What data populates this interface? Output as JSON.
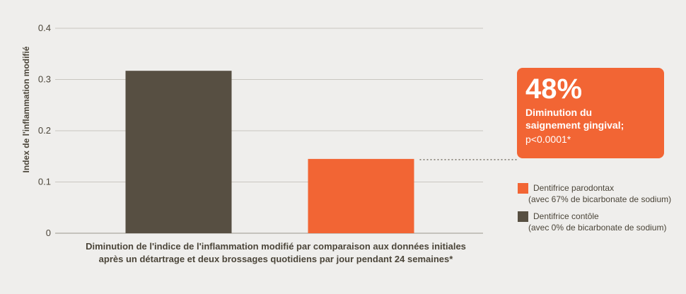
{
  "chart_data": {
    "type": "bar",
    "ylabel": "Index de l'inflammation modifié",
    "xlabel_lines": [
      "Diminution de l'indice de l'inflammation modifié par comparaison aux données initiales",
      "après un détartrage et deux brossages quotidiens par jour pendant 24 semaines*"
    ],
    "ylim": [
      0,
      0.4
    ],
    "yticks": [
      0,
      0.1,
      0.2,
      0.3,
      0.4
    ],
    "ytick_labels": [
      "0",
      "0.1",
      "0.2",
      "0.3",
      "0.4"
    ],
    "grid": true,
    "legend_position": "right",
    "bars": [
      {
        "series": "Dentifrice contôle",
        "value": 0.317,
        "color": "#574f42"
      },
      {
        "series": "Dentifrice parodontax",
        "value": 0.145,
        "color": "#f26534"
      }
    ]
  },
  "callout": {
    "percent": "48%",
    "line1": "Diminution du",
    "line2": "saignement gingival;",
    "pvalue": "p<0.0001*"
  },
  "legend": [
    {
      "name": "Dentifrice parodontax",
      "detail": "(avec 67% de bicarbonate de sodium)",
      "color": "#f26534"
    },
    {
      "name": "Dentifrice contôle",
      "detail": "(avec 0% de bicarbonate de sodium)",
      "color": "#574f42"
    }
  ]
}
